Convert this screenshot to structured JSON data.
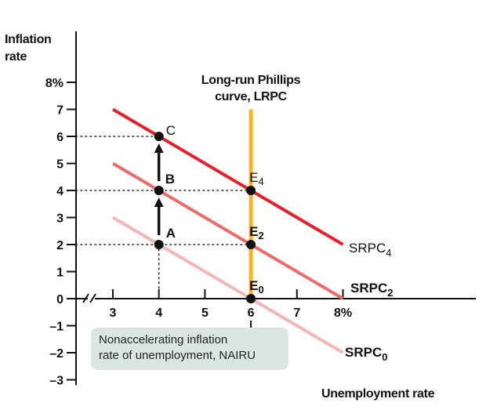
{
  "chart_data": {
    "type": "line",
    "title": "",
    "xlabel": "Unemployment rate",
    "ylabel": "Inflation rate",
    "xlim": [
      2.3,
      9.1
    ],
    "ylim": [
      -3,
      9.6
    ],
    "x_ticks": [
      {
        "value": 3,
        "label": "3"
      },
      {
        "value": 4,
        "label": "4"
      },
      {
        "value": 5,
        "label": "5"
      },
      {
        "value": 6,
        "label": "6"
      },
      {
        "value": 7,
        "label": "7"
      },
      {
        "value": 8,
        "label": "8%"
      }
    ],
    "y_ticks": [
      {
        "value": 8,
        "label": "8%"
      },
      {
        "value": 7,
        "label": "7"
      },
      {
        "value": 6,
        "label": "6"
      },
      {
        "value": 5,
        "label": "5"
      },
      {
        "value": 4,
        "label": "4"
      },
      {
        "value": 3,
        "label": "3"
      },
      {
        "value": 2,
        "label": "2"
      },
      {
        "value": 1,
        "label": "1"
      },
      {
        "value": 0,
        "label": "0"
      },
      {
        "value": -1,
        "label": "–1"
      },
      {
        "value": -2,
        "label": "–2"
      },
      {
        "value": -3,
        "label": "–3"
      }
    ],
    "series": [
      {
        "name": "SRPC",
        "subscript": "0",
        "color": "#f6b5b5",
        "x": [
          3,
          8
        ],
        "y": [
          3,
          -2
        ]
      },
      {
        "name": "SRPC",
        "subscript": "2",
        "color": "#ec6b6b",
        "x": [
          3,
          8
        ],
        "y": [
          5,
          0
        ]
      },
      {
        "name": "SRPC",
        "subscript": "4",
        "color": "#e5202a",
        "x": [
          3,
          8
        ],
        "y": [
          7,
          2
        ]
      }
    ],
    "lrpc": {
      "x": 6,
      "y_from": 0,
      "y_to": 7,
      "color": "#f7b32b",
      "label_line1": "Long-run Phillips",
      "label_line2": "curve, LRPC"
    },
    "points": [
      {
        "id": "A",
        "label": "A",
        "x": 4,
        "y": 2
      },
      {
        "id": "B",
        "label": "B",
        "x": 4,
        "y": 4
      },
      {
        "id": "C",
        "label": "C",
        "x": 4,
        "y": 6
      },
      {
        "id": "E0",
        "label": "E",
        "subscript": "0",
        "x": 6,
        "y": 0
      },
      {
        "id": "E2",
        "label": "E",
        "subscript": "2",
        "x": 6,
        "y": 2
      },
      {
        "id": "E4",
        "label": "E",
        "subscript": "4",
        "x": 6,
        "y": 4
      }
    ],
    "arrows": [
      {
        "from": "A",
        "to": "B"
      },
      {
        "from": "B",
        "to": "C"
      }
    ],
    "nairu_label_line1": "Nonaccelerating inflation",
    "nairu_label_line2": "rate of unemployment, NAIRU"
  }
}
